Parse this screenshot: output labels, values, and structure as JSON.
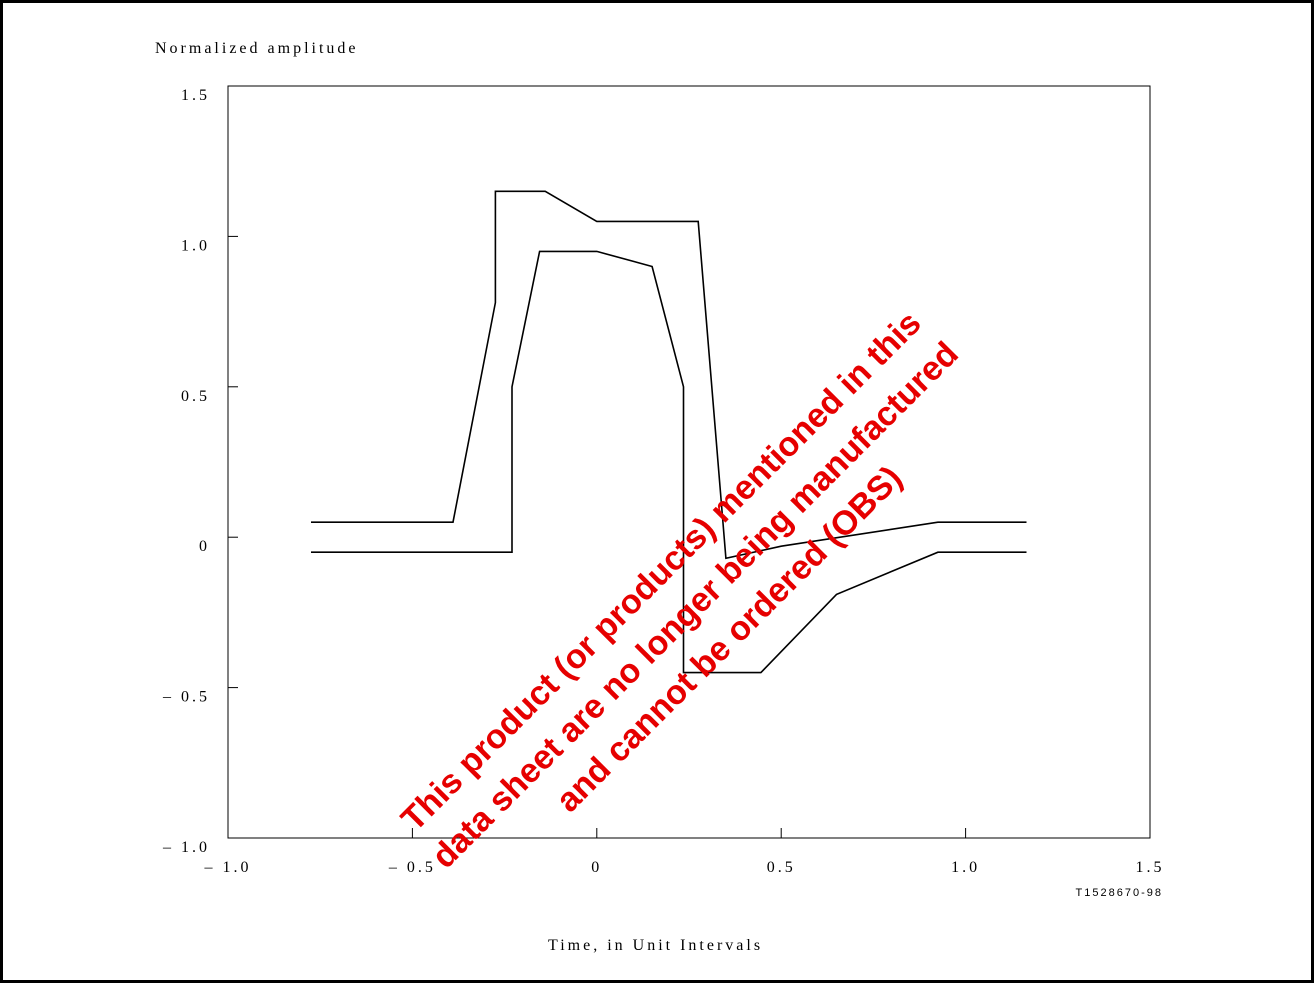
{
  "chart_data": {
    "type": "line",
    "ylabel": "Normalized amplitude",
    "xlabel": "Time, in Unit Intervals",
    "figure_id": "T1528670-98",
    "xlim": [
      -1.0,
      1.5
    ],
    "ylim": [
      -1.0,
      1.5
    ],
    "x_ticks": [
      -1.0,
      -0.5,
      0,
      0.5,
      1.0,
      1.5
    ],
    "x_tick_labels": [
      "– 1.0",
      "– 0.5",
      "0",
      "0.5",
      "1.0",
      "1.5"
    ],
    "y_ticks": [
      1.5,
      1.0,
      0.5,
      0,
      -0.5,
      -1.0
    ],
    "y_tick_labels": [
      "1.5",
      "1.0",
      "0.5",
      "0",
      "– 0.5",
      "– 1.0"
    ],
    "grid": false,
    "series": [
      {
        "x": [
          -0.775,
          -0.39,
          -0.275,
          -0.275,
          -0.14,
          0.0,
          0.275,
          0.35,
          0.5,
          0.925,
          1.165
        ],
        "y": [
          0.05,
          0.05,
          0.78,
          1.15,
          1.15,
          1.05,
          1.05,
          -0.07,
          -0.03,
          0.05,
          0.05
        ]
      },
      {
        "x": [
          -0.775,
          -0.23,
          -0.23,
          -0.155,
          0.0,
          0.15,
          0.235,
          0.235,
          0.445,
          0.65,
          0.925,
          1.165
        ],
        "y": [
          -0.05,
          -0.05,
          0.5,
          0.95,
          0.95,
          0.9,
          0.5,
          -0.45,
          -0.45,
          -0.19,
          -0.05,
          -0.05
        ]
      }
    ],
    "color": "#000000"
  },
  "watermark": {
    "lines": [
      "This product (or products) mentioned in this",
      "data sheet are no longer being manufactured",
      "and cannot be ordered (OBS)"
    ],
    "color": "#e60000"
  }
}
